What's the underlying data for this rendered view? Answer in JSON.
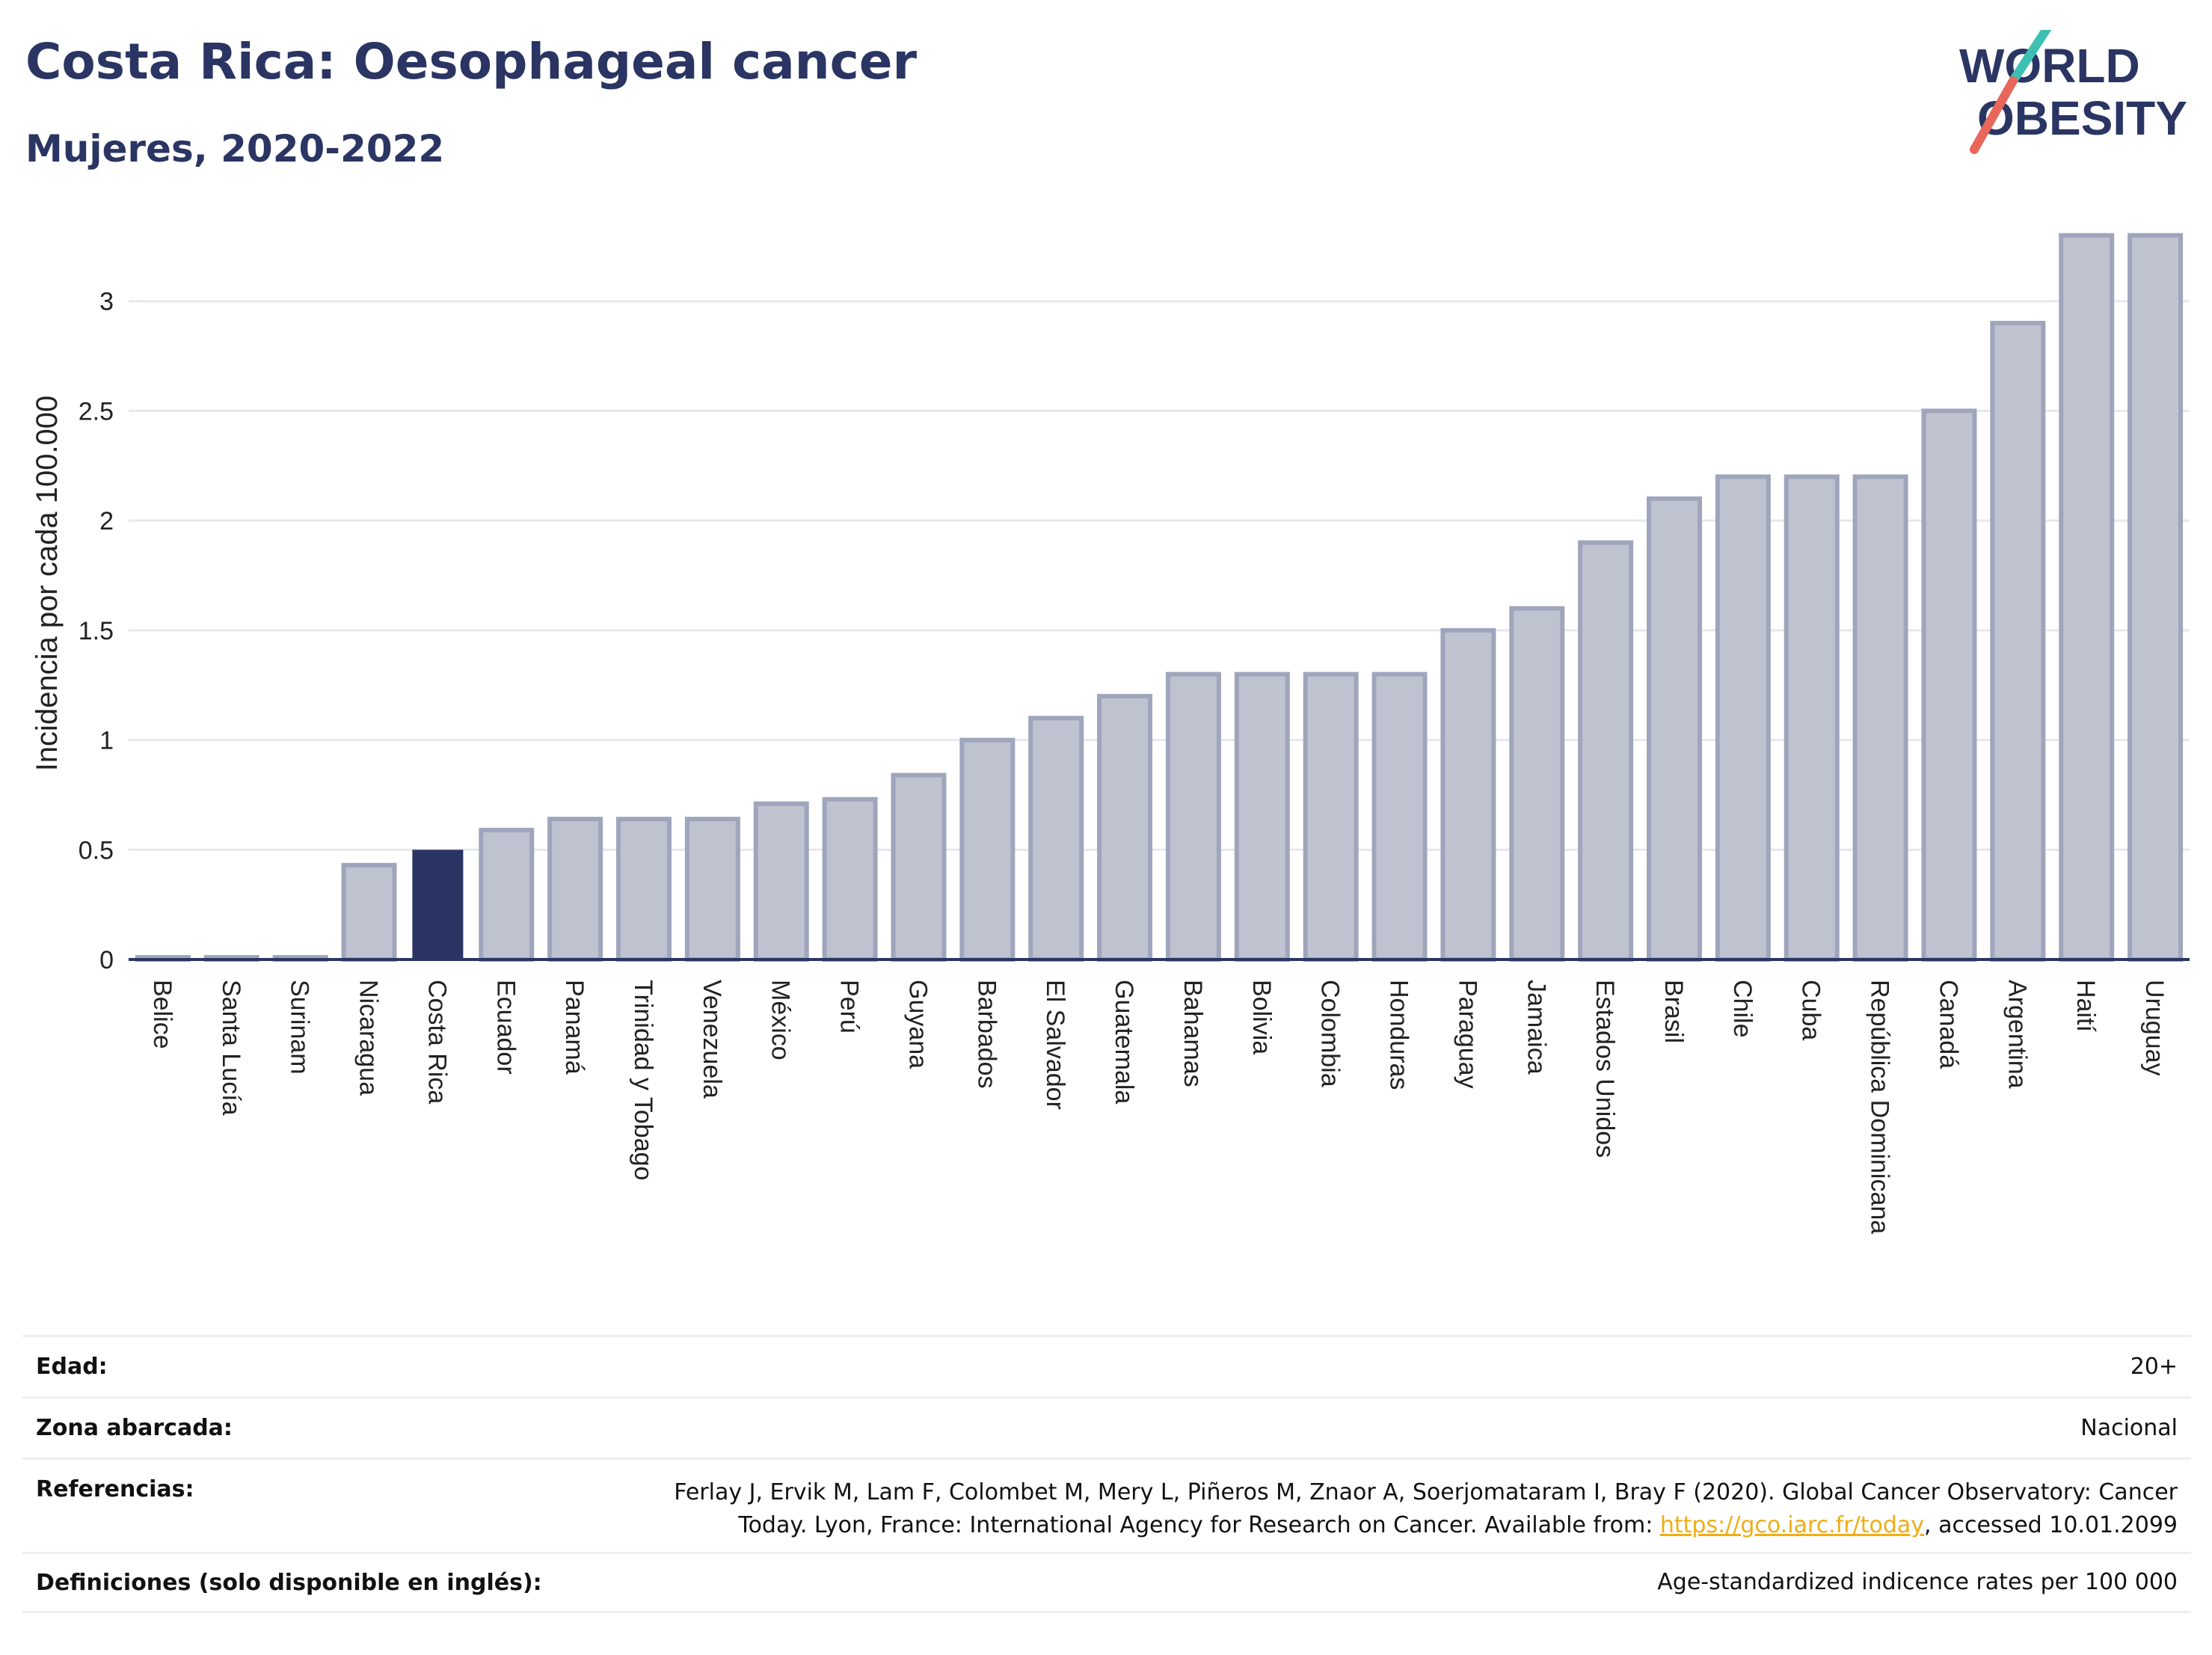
{
  "header": {
    "title": "Costa Rica: Oesophageal cancer",
    "subtitle": "Mujeres, 2020-2022"
  },
  "logo": {
    "line1": "WORLD",
    "line2": "OBESITY",
    "accent_teal": "#3cc0b2",
    "accent_red": "#e8665a"
  },
  "colors": {
    "highlight_bar": "#2a3563",
    "other_bar_fill": "#bfc3d0",
    "other_bar_stroke": "#9fa5bb",
    "grid": "#e6e8ee",
    "axis": "#2a3563"
  },
  "chart_data": {
    "type": "bar",
    "title": "",
    "xlabel": "",
    "ylabel": "Incidencia por cada 100.000",
    "ylim": [
      0,
      3.35
    ],
    "yticks": [
      "0",
      "0.5",
      "1",
      "1.5",
      "2",
      "2.5",
      "3"
    ],
    "grid": true,
    "highlight": "Costa Rica",
    "categories": [
      "Belice",
      "Santa Lucía",
      "Surinam",
      "Nicaragua",
      "Costa Rica",
      "Ecuador",
      "Panamá",
      "Trinidad y Tobago",
      "Venezuela",
      "México",
      "Perú",
      "Guyana",
      "Barbados",
      "El Salvador",
      "Guatemala",
      "Bahamas",
      "Bolivia",
      "Colombia",
      "Honduras",
      "Paraguay",
      "Jamaica",
      "Estados Unidos",
      "Brasil",
      "Chile",
      "Cuba",
      "República Dominicana",
      "Canadá",
      "Argentina",
      "Haití",
      "Uruguay"
    ],
    "values": [
      0.01,
      0.01,
      0.01,
      0.43,
      0.5,
      0.59,
      0.64,
      0.64,
      0.64,
      0.71,
      0.73,
      0.84,
      1.0,
      1.1,
      1.2,
      1.3,
      1.3,
      1.3,
      1.3,
      1.5,
      1.6,
      1.9,
      2.1,
      2.2,
      2.2,
      2.2,
      2.5,
      2.9,
      3.3,
      3.3
    ]
  },
  "info": [
    {
      "label": "Edad:",
      "value": "20+"
    },
    {
      "label": "Zona abarcada:",
      "value": "Nacional"
    },
    {
      "label": "Referencias:",
      "value_lines": [
        "Ferlay J, Ervik M, Lam F, Colombet M, Mery L, Piñeros M, Znaor A, Soerjomataram I, Bray F (2020). Global Cancer Observatory: Cancer",
        "Today. Lyon, France: International Agency for Research on Cancer. Available from: "
      ],
      "link": "https://gco.iarc.fr/today",
      "value_suffix": ", accessed 10.01.2099"
    },
    {
      "label": "Definiciones (solo disponible en inglés):",
      "value": "Age-standardized indicence rates per 100 000"
    }
  ]
}
